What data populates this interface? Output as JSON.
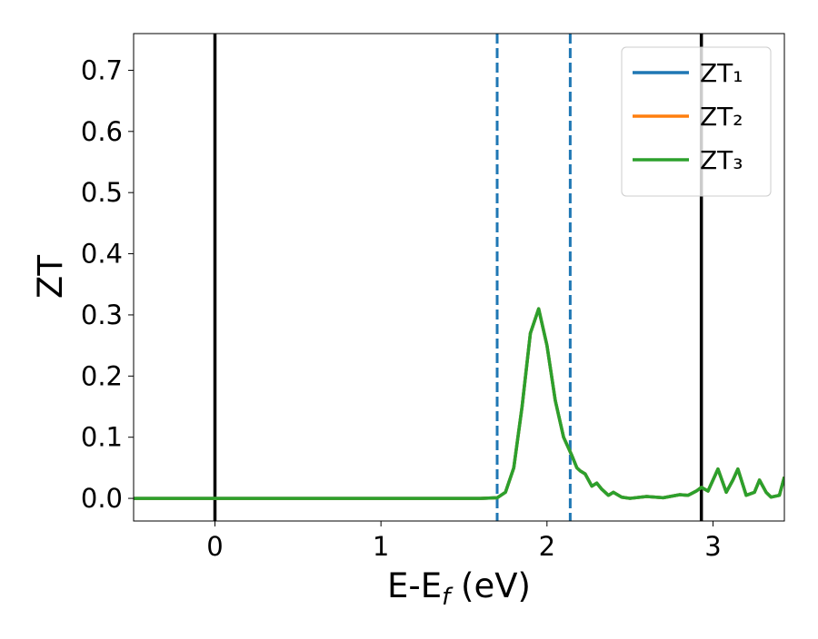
{
  "chart_data": {
    "type": "line",
    "y_label": "ZT",
    "x_label": [
      "E-E",
      "f",
      " (eV)"
    ],
    "x": [
      -0.49,
      1.6,
      1.7,
      1.75,
      1.8,
      1.85,
      1.9,
      1.95,
      2.0,
      2.05,
      2.1,
      2.15,
      2.18,
      2.2,
      2.23,
      2.27,
      2.3,
      2.33,
      2.37,
      2.4,
      2.45,
      2.5,
      2.6,
      2.7,
      2.8,
      2.85,
      2.9,
      2.93,
      2.97,
      3.03,
      3.08,
      3.12,
      3.15,
      3.2,
      3.25,
      3.28,
      3.32,
      3.35,
      3.4,
      3.43
    ],
    "series": [
      {
        "name": "ZT₁",
        "color": "#1f77b4",
        "values": [
          0,
          0,
          0.001,
          0.01,
          0.05,
          0.15,
          0.27,
          0.31,
          0.25,
          0.16,
          0.1,
          0.07,
          0.05,
          0.045,
          0.04,
          0.02,
          0.025,
          0.015,
          0.005,
          0.01,
          0.002,
          0,
          0.003,
          0.001,
          0.006,
          0.005,
          0.012,
          0.018,
          0.012,
          0.048,
          0.01,
          0.03,
          0.048,
          0.005,
          0.01,
          0.03,
          0.01,
          0.002,
          0.005,
          0.035
        ]
      },
      {
        "name": "ZT₂",
        "color": "#ff7f0e",
        "values": [
          0,
          0,
          0.001,
          0.01,
          0.05,
          0.15,
          0.27,
          0.31,
          0.25,
          0.16,
          0.1,
          0.07,
          0.05,
          0.045,
          0.04,
          0.02,
          0.025,
          0.015,
          0.005,
          0.01,
          0.002,
          0,
          0.003,
          0.001,
          0.006,
          0.005,
          0.012,
          0.018,
          0.012,
          0.048,
          0.01,
          0.03,
          0.048,
          0.005,
          0.01,
          0.03,
          0.01,
          0.002,
          0.005,
          0.035
        ]
      },
      {
        "name": "ZT₃",
        "color": "#2ca02c",
        "values": [
          0,
          0,
          0.001,
          0.01,
          0.05,
          0.15,
          0.27,
          0.31,
          0.25,
          0.16,
          0.1,
          0.07,
          0.05,
          0.045,
          0.04,
          0.02,
          0.025,
          0.015,
          0.005,
          0.01,
          0.002,
          0,
          0.003,
          0.001,
          0.006,
          0.005,
          0.012,
          0.018,
          0.012,
          0.048,
          0.01,
          0.03,
          0.048,
          0.005,
          0.01,
          0.03,
          0.01,
          0.002,
          0.005,
          0.035
        ]
      }
    ],
    "vlines": [
      {
        "x": 0,
        "color": "#000000",
        "style": "solid"
      },
      {
        "x": 2.93,
        "color": "#000000",
        "style": "solid"
      },
      {
        "x": 1.7,
        "color": "#1f77b4",
        "style": "dashed"
      },
      {
        "x": 2.14,
        "color": "#1f77b4",
        "style": "dashed"
      }
    ],
    "xlim": [
      -0.49,
      3.43
    ],
    "ylim": [
      -0.037,
      0.76
    ],
    "xticks": [
      0,
      1,
      2,
      3
    ],
    "yticks": [
      {
        "value": 0,
        "label": "0.0"
      },
      0.1,
      0.2,
      0.3,
      0.4,
      0.5,
      0.6,
      0.7
    ],
    "legend": "upper right"
  }
}
